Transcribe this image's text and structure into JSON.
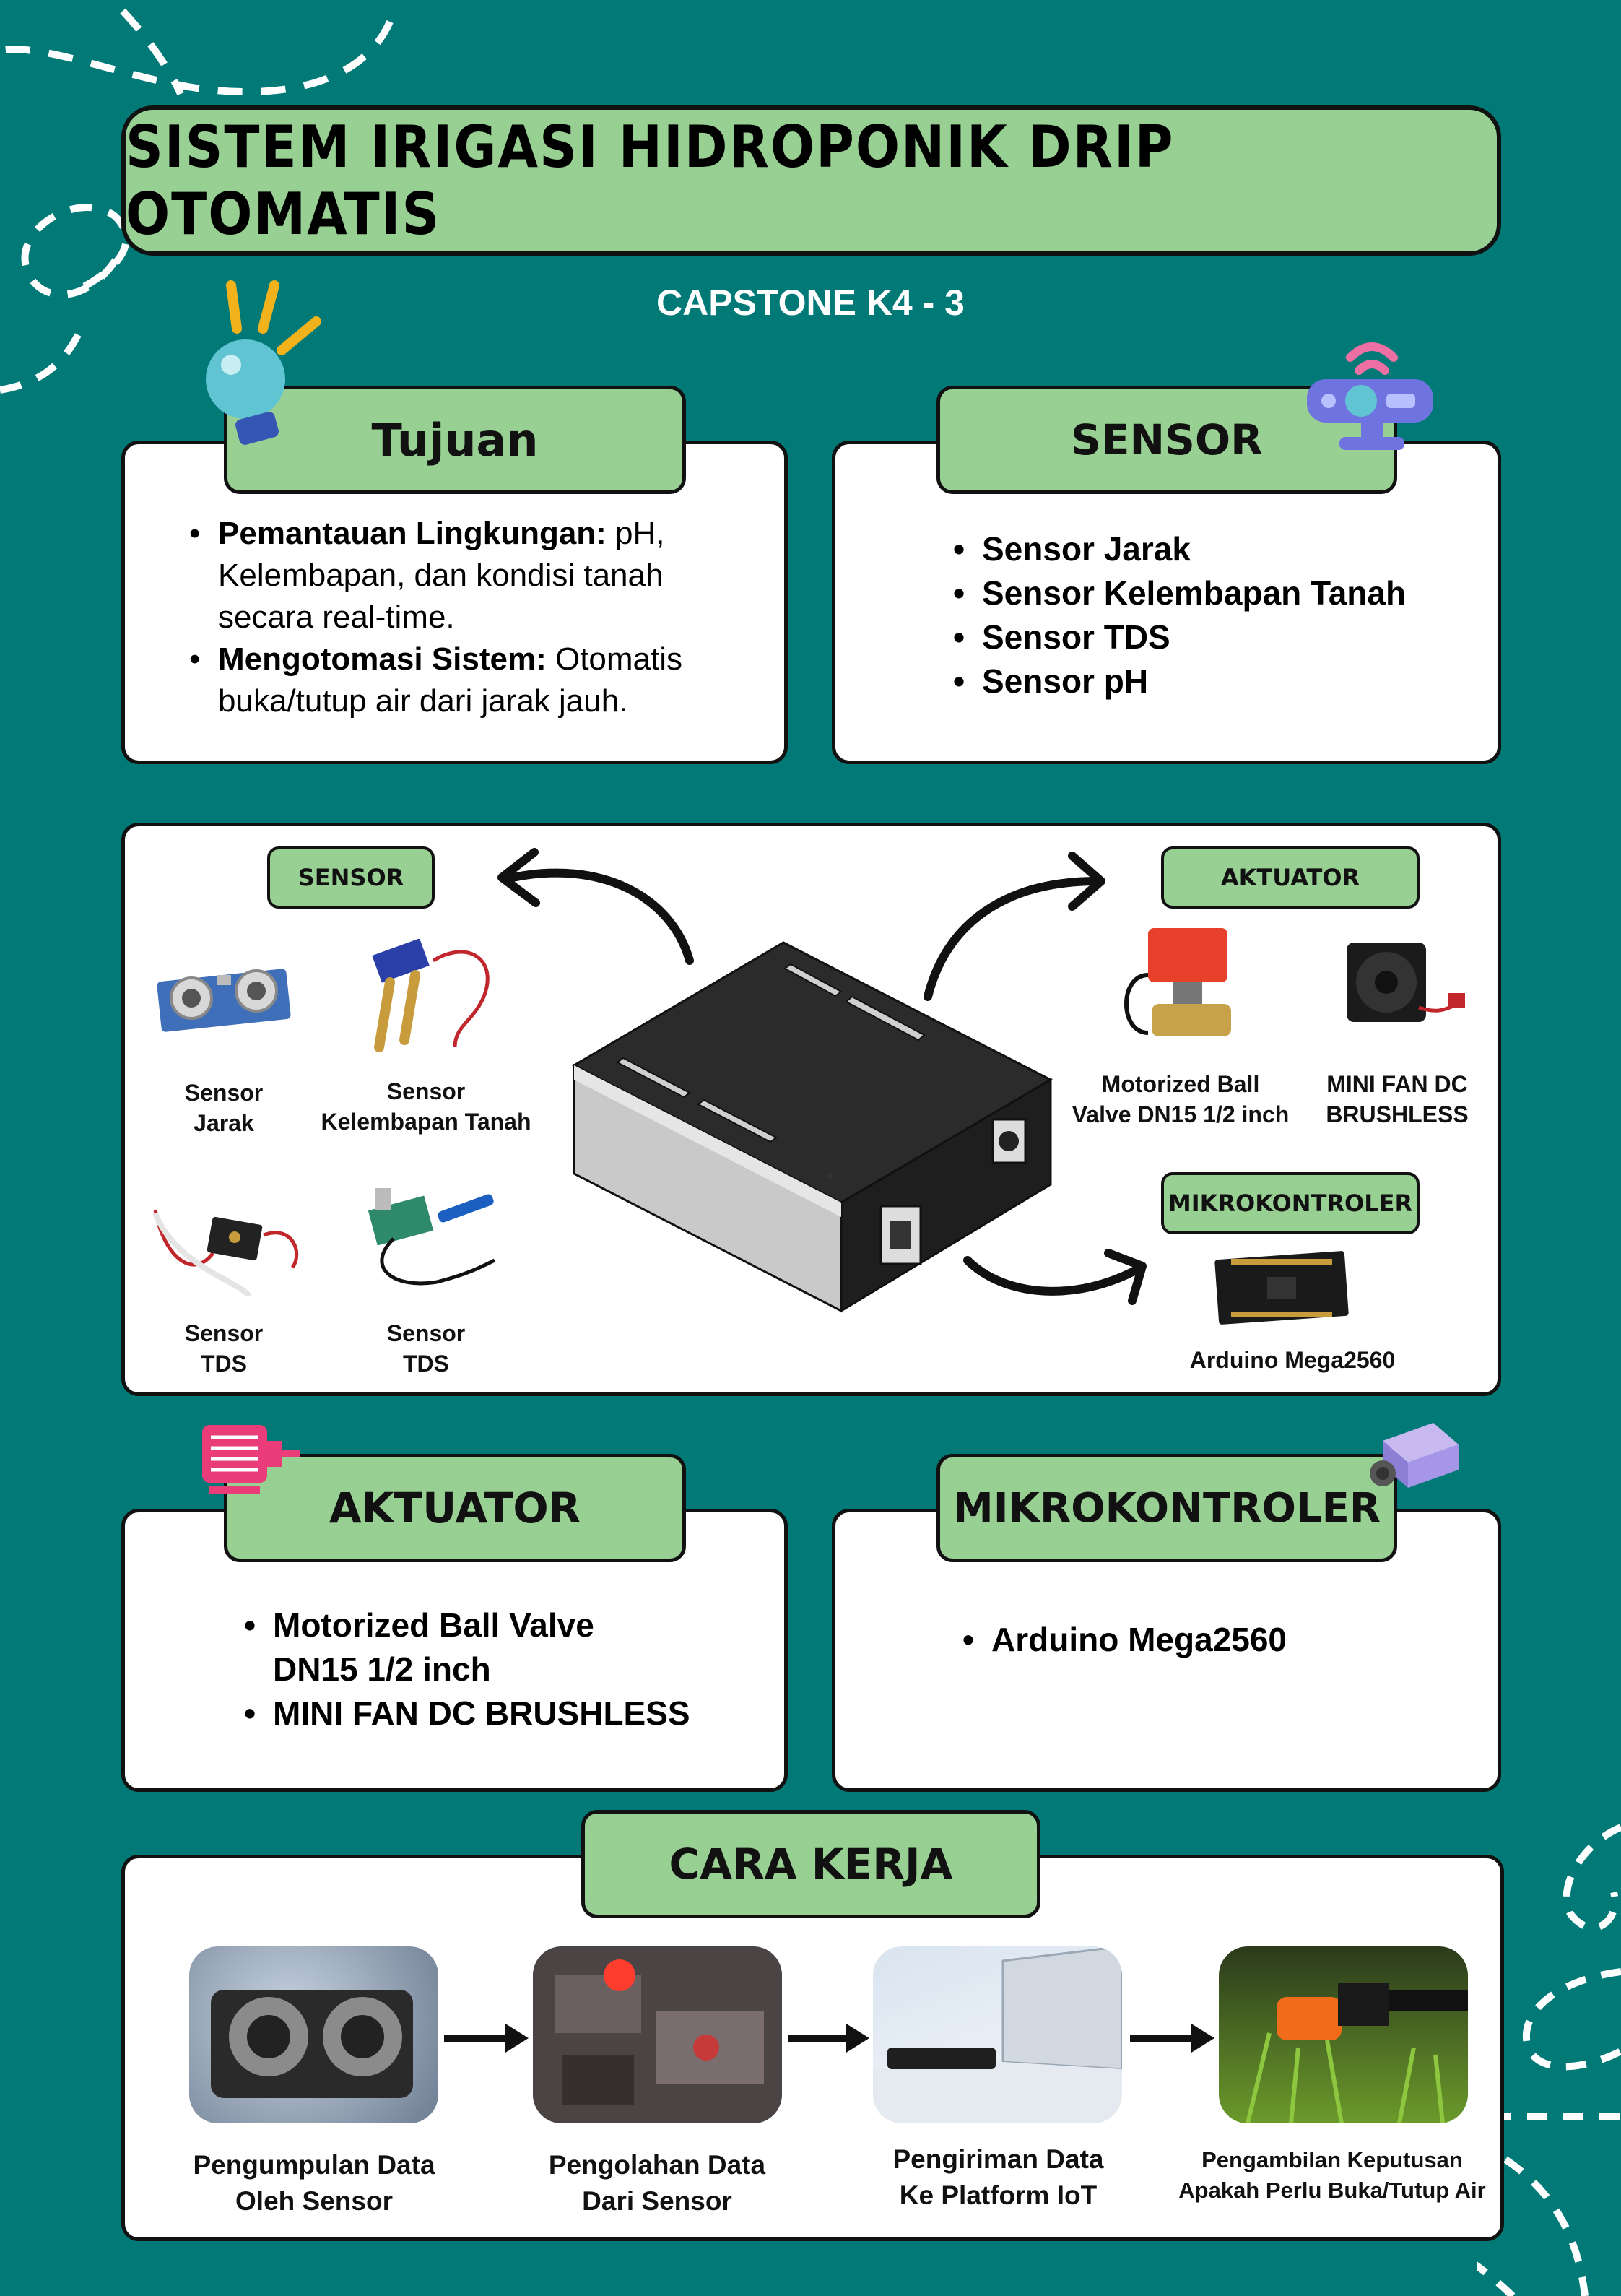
{
  "title": "SISTEM IRIGASI HIDROPONIK DRIP OTOMATIS",
  "subtitle": "CAPSTONE K4 - 3",
  "tujuan": {
    "heading": "Tujuan",
    "items": [
      {
        "bold": "Pemantauan Lingkungan:",
        "text": " pH, Kelembapan, dan kondisi tanah secara real-time."
      },
      {
        "bold": "Mengotomasi Sistem:",
        "text": "  Otomatis buka/tutup air dari jarak jauh."
      }
    ]
  },
  "sensor": {
    "heading": "SENSOR",
    "items": [
      "Sensor Jarak",
      "Sensor Kelembapan Tanah",
      "Sensor TDS",
      "Sensor pH"
    ]
  },
  "diagram": {
    "sensor_tag": "SENSOR",
    "aktuator_tag": "AKTUATOR",
    "mikro_tag": "MIKROKONTROLER",
    "sensor_jarak": [
      "Sensor",
      "Jarak"
    ],
    "sensor_kelembapan": [
      "Sensor",
      "Kelembapan Tanah"
    ],
    "sensor_tds1": [
      "Sensor",
      "TDS"
    ],
    "sensor_tds2": [
      "Sensor",
      "TDS"
    ],
    "valve": [
      "Motorized Ball",
      "Valve DN15 1/2 inch"
    ],
    "fan": [
      "MINI FAN DC",
      "BRUSHLESS"
    ],
    "arduino": "Arduino Mega2560"
  },
  "aktuator": {
    "heading": "AKTUATOR",
    "items": [
      "Motorized Ball Valve DN15 1/2 inch",
      "MINI FAN DC BRUSHLESS"
    ]
  },
  "mikrokontroler": {
    "heading": "MIKROKONTROLER",
    "items": [
      "Arduino Mega2560"
    ]
  },
  "cara_kerja": {
    "heading": "CARA KERJA",
    "steps": [
      [
        "Pengumpulan Data",
        "Oleh Sensor"
      ],
      [
        "Pengolahan Data",
        "Dari Sensor"
      ],
      [
        "Pengiriman Data",
        "Ke Platform IoT"
      ],
      [
        "Pengambilan Keputusan",
        "Apakah Perlu Buka/Tutup Air"
      ]
    ]
  },
  "colors": {
    "background": "#017a77",
    "tag_green": "#98cf93",
    "panel": "#ffffff",
    "outline": "#111111"
  }
}
